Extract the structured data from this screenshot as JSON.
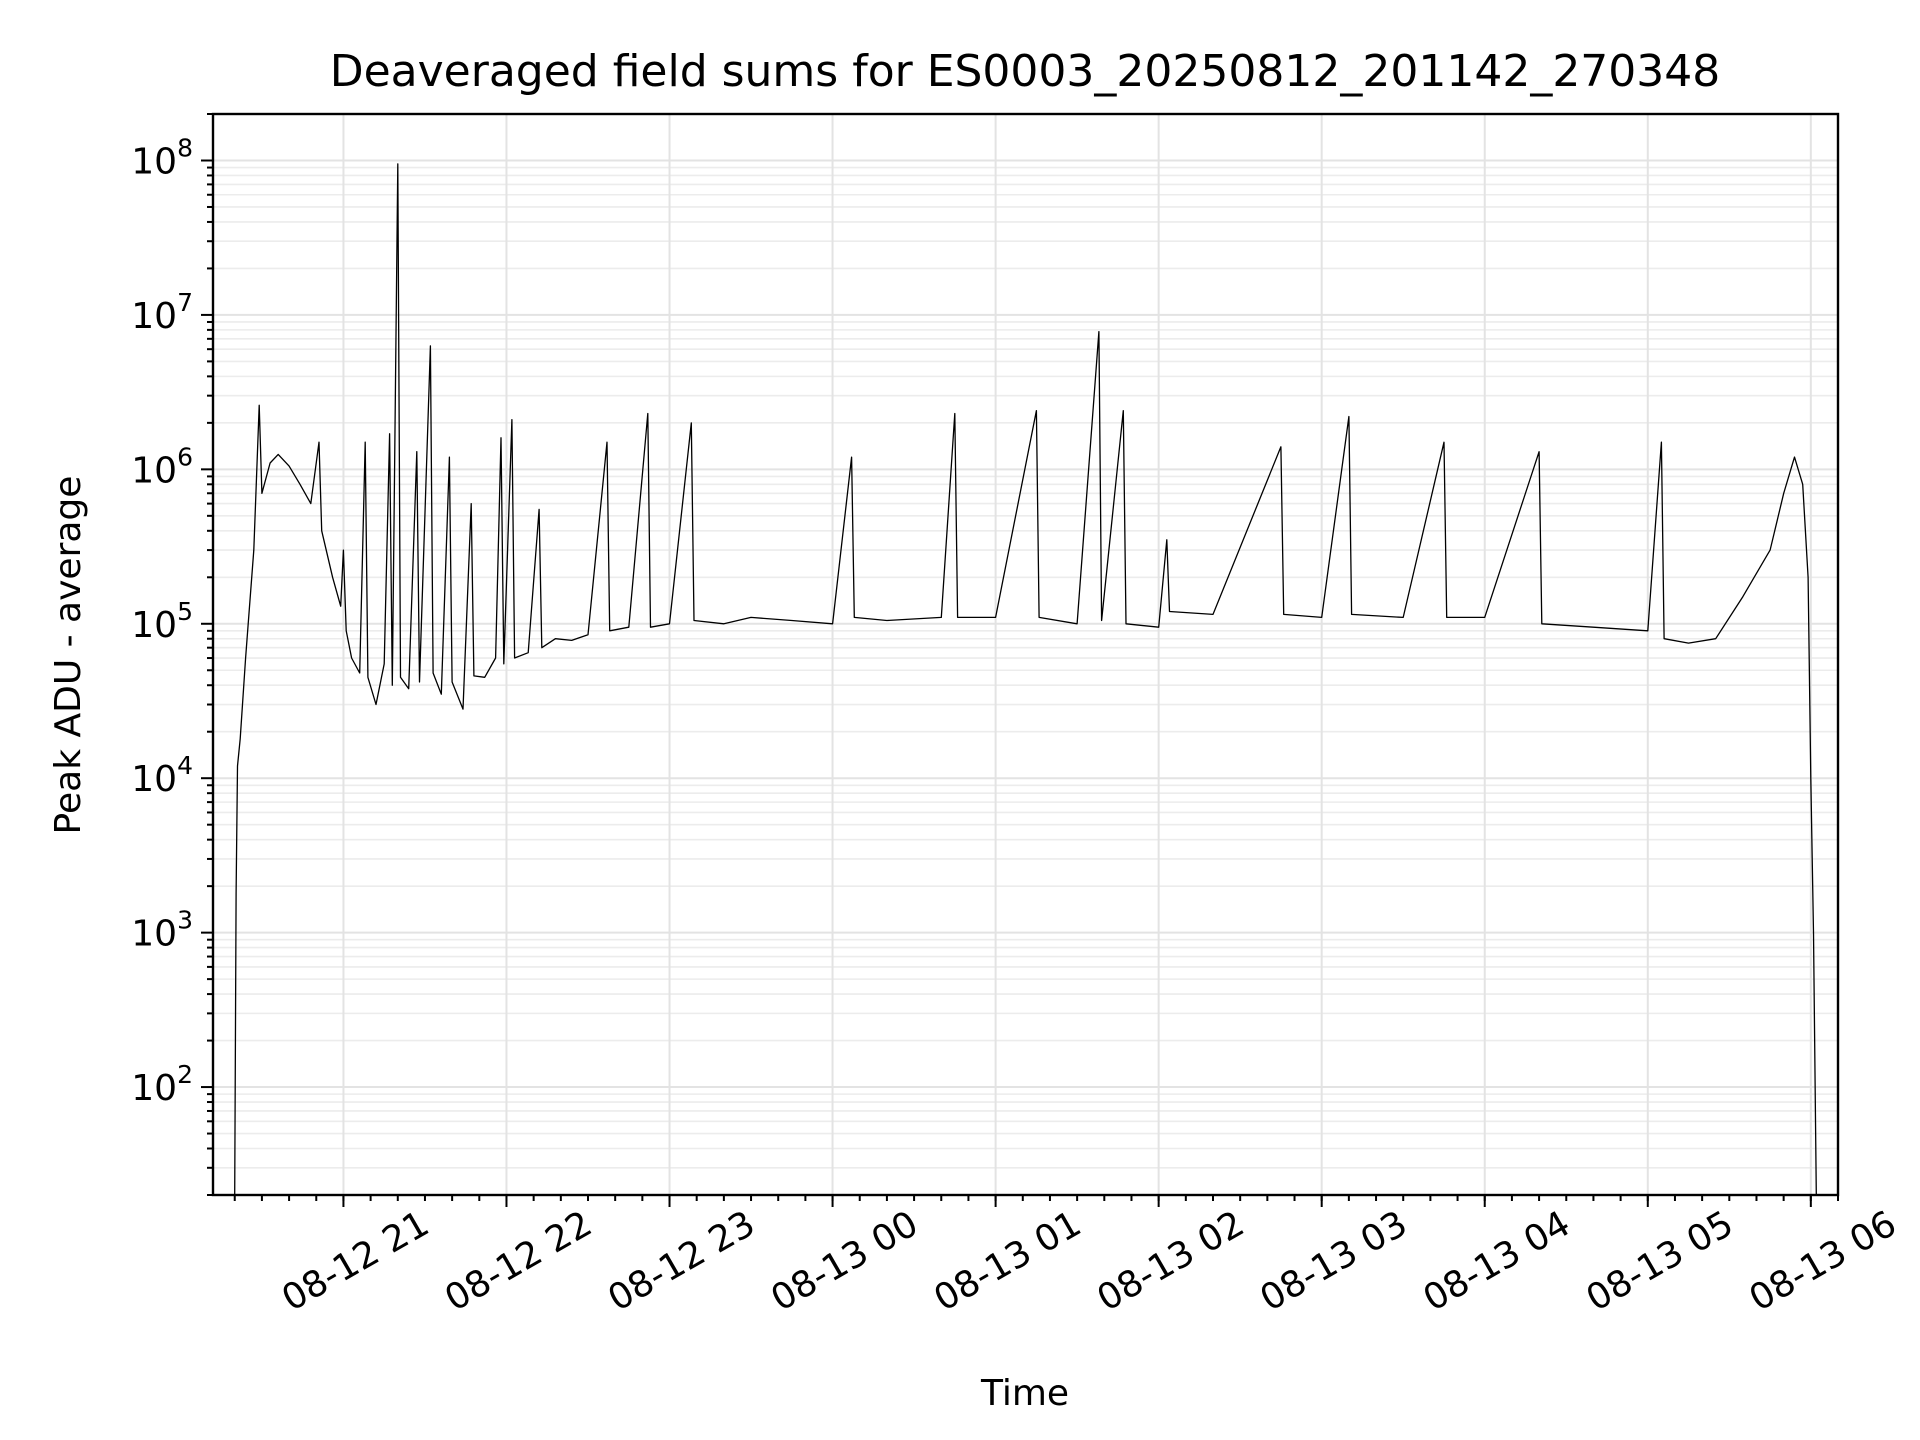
{
  "chart_data": {
    "type": "line",
    "title": "Deaveraged field sums for ES0003_20250812_201142_270348",
    "xlabel": "Time",
    "ylabel": "Peak ADU - average",
    "yscale": "log",
    "ylim": [
      20,
      200000000
    ],
    "xlim": [
      "2025-08-12T20:12:00",
      "2025-08-13T06:10:00"
    ],
    "grid": true,
    "x_ticks": [
      {
        "value": "2025-08-12T21:00:00",
        "label": "08-12 21"
      },
      {
        "value": "2025-08-12T22:00:00",
        "label": "08-12 22"
      },
      {
        "value": "2025-08-12T23:00:00",
        "label": "08-12 23"
      },
      {
        "value": "2025-08-13T00:00:00",
        "label": "08-13 00"
      },
      {
        "value": "2025-08-13T01:00:00",
        "label": "08-13 01"
      },
      {
        "value": "2025-08-13T02:00:00",
        "label": "08-13 02"
      },
      {
        "value": "2025-08-13T03:00:00",
        "label": "08-13 03"
      },
      {
        "value": "2025-08-13T04:00:00",
        "label": "08-13 04"
      },
      {
        "value": "2025-08-13T05:00:00",
        "label": "08-13 05"
      },
      {
        "value": "2025-08-13T06:00:00",
        "label": "08-13 06"
      }
    ],
    "y_ticks": [
      {
        "value": 100,
        "base": "10",
        "exp": "2"
      },
      {
        "value": 1000,
        "base": "10",
        "exp": "3"
      },
      {
        "value": 10000,
        "base": "10",
        "exp": "4"
      },
      {
        "value": 100000,
        "base": "10",
        "exp": "5"
      },
      {
        "value": 1000000,
        "base": "10",
        "exp": "6"
      },
      {
        "value": 10000000,
        "base": "10",
        "exp": "7"
      },
      {
        "value": 100000000,
        "base": "10",
        "exp": "8"
      }
    ],
    "series": [
      {
        "color": "#000000",
        "points": [
          [
            "2025-08-12T20:20:00",
            20
          ],
          [
            "2025-08-12T20:20:30",
            1800
          ],
          [
            "2025-08-12T20:21:00",
            12000
          ],
          [
            "2025-08-12T20:22:00",
            18000
          ],
          [
            "2025-08-12T20:24:00",
            60000
          ],
          [
            "2025-08-12T20:27:00",
            300000
          ],
          [
            "2025-08-12T20:29:00",
            2600000
          ],
          [
            "2025-08-12T20:30:00",
            700000
          ],
          [
            "2025-08-12T20:33:00",
            1100000
          ],
          [
            "2025-08-12T20:36:00",
            1250000
          ],
          [
            "2025-08-12T20:40:00",
            1050000
          ],
          [
            "2025-08-12T20:44:00",
            800000
          ],
          [
            "2025-08-12T20:48:00",
            600000
          ],
          [
            "2025-08-12T20:51:00",
            1500000
          ],
          [
            "2025-08-12T20:52:00",
            400000
          ],
          [
            "2025-08-12T20:56:00",
            200000
          ],
          [
            "2025-08-12T20:59:00",
            130000
          ],
          [
            "2025-08-12T21:00:00",
            300000
          ],
          [
            "2025-08-12T21:01:00",
            90000
          ],
          [
            "2025-08-12T21:03:00",
            60000
          ],
          [
            "2025-08-12T21:06:00",
            48000
          ],
          [
            "2025-08-12T21:08:00",
            1500000
          ],
          [
            "2025-08-12T21:09:00",
            45000
          ],
          [
            "2025-08-12T21:12:00",
            30000
          ],
          [
            "2025-08-12T21:15:00",
            55000
          ],
          [
            "2025-08-12T21:17:00",
            1700000
          ],
          [
            "2025-08-12T21:18:00",
            40000
          ],
          [
            "2025-08-12T21:20:00",
            95000000
          ],
          [
            "2025-08-12T21:21:00",
            45000
          ],
          [
            "2025-08-12T21:24:00",
            38000
          ],
          [
            "2025-08-12T21:27:00",
            1300000
          ],
          [
            "2025-08-12T21:28:00",
            42000
          ],
          [
            "2025-08-12T21:32:00",
            6300000
          ],
          [
            "2025-08-12T21:33:00",
            48000
          ],
          [
            "2025-08-12T21:36:00",
            35000
          ],
          [
            "2025-08-12T21:39:00",
            1200000
          ],
          [
            "2025-08-12T21:40:00",
            42000
          ],
          [
            "2025-08-12T21:44:00",
            28000
          ],
          [
            "2025-08-12T21:47:00",
            600000
          ],
          [
            "2025-08-12T21:48:00",
            46000
          ],
          [
            "2025-08-12T21:52:00",
            45000
          ],
          [
            "2025-08-12T21:56:00",
            60000
          ],
          [
            "2025-08-12T21:58:00",
            1600000
          ],
          [
            "2025-08-12T21:59:00",
            55000
          ],
          [
            "2025-08-12T22:02:00",
            2100000
          ],
          [
            "2025-08-12T22:03:00",
            60000
          ],
          [
            "2025-08-12T22:08:00",
            65000
          ],
          [
            "2025-08-12T22:12:00",
            550000
          ],
          [
            "2025-08-12T22:13:00",
            70000
          ],
          [
            "2025-08-12T22:18:00",
            80000
          ],
          [
            "2025-08-12T22:24:00",
            78000
          ],
          [
            "2025-08-12T22:30:00",
            85000
          ],
          [
            "2025-08-12T22:37:00",
            1500000
          ],
          [
            "2025-08-12T22:38:00",
            90000
          ],
          [
            "2025-08-12T22:45:00",
            95000
          ],
          [
            "2025-08-12T22:52:00",
            2300000
          ],
          [
            "2025-08-12T22:53:00",
            95000
          ],
          [
            "2025-08-12T23:00:00",
            100000
          ],
          [
            "2025-08-12T23:08:00",
            2000000
          ],
          [
            "2025-08-12T23:09:00",
            105000
          ],
          [
            "2025-08-12T23:20:00",
            100000
          ],
          [
            "2025-08-12T23:30:00",
            110000
          ],
          [
            "2025-08-12T23:45:00",
            105000
          ],
          [
            "2025-08-13T00:00:00",
            100000
          ],
          [
            "2025-08-13T00:07:00",
            1200000
          ],
          [
            "2025-08-13T00:08:00",
            110000
          ],
          [
            "2025-08-13T00:20:00",
            105000
          ],
          [
            "2025-08-13T00:40:00",
            110000
          ],
          [
            "2025-08-13T00:45:00",
            2300000
          ],
          [
            "2025-08-13T00:46:00",
            110000
          ],
          [
            "2025-08-13T01:00:00",
            110000
          ],
          [
            "2025-08-13T01:15:00",
            2400000
          ],
          [
            "2025-08-13T01:16:00",
            110000
          ],
          [
            "2025-08-13T01:30:00",
            100000
          ],
          [
            "2025-08-13T01:38:00",
            7800000
          ],
          [
            "2025-08-13T01:39:00",
            105000
          ],
          [
            "2025-08-13T01:47:00",
            2400000
          ],
          [
            "2025-08-13T01:48:00",
            100000
          ],
          [
            "2025-08-13T02:00:00",
            95000
          ],
          [
            "2025-08-13T02:03:00",
            350000
          ],
          [
            "2025-08-13T02:04:00",
            120000
          ],
          [
            "2025-08-13T02:20:00",
            115000
          ],
          [
            "2025-08-13T02:45:00",
            1400000
          ],
          [
            "2025-08-13T02:46:00",
            115000
          ],
          [
            "2025-08-13T03:00:00",
            110000
          ],
          [
            "2025-08-13T03:10:00",
            2200000
          ],
          [
            "2025-08-13T03:11:00",
            115000
          ],
          [
            "2025-08-13T03:30:00",
            110000
          ],
          [
            "2025-08-13T03:45:00",
            1500000
          ],
          [
            "2025-08-13T03:46:00",
            110000
          ],
          [
            "2025-08-13T04:00:00",
            110000
          ],
          [
            "2025-08-13T04:20:00",
            1300000
          ],
          [
            "2025-08-13T04:21:00",
            100000
          ],
          [
            "2025-08-13T04:40:00",
            95000
          ],
          [
            "2025-08-13T05:00:00",
            90000
          ],
          [
            "2025-08-13T05:05:00",
            1500000
          ],
          [
            "2025-08-13T05:06:00",
            80000
          ],
          [
            "2025-08-13T05:15:00",
            75000
          ],
          [
            "2025-08-13T05:25:00",
            80000
          ],
          [
            "2025-08-13T05:35:00",
            150000
          ],
          [
            "2025-08-13T05:45:00",
            300000
          ],
          [
            "2025-08-13T05:50:00",
            700000
          ],
          [
            "2025-08-13T05:54:00",
            1200000
          ],
          [
            "2025-08-13T05:57:00",
            800000
          ],
          [
            "2025-08-13T05:59:00",
            200000
          ],
          [
            "2025-08-13T06:00:00",
            10000
          ],
          [
            "2025-08-13T06:01:00",
            1000
          ],
          [
            "2025-08-13T06:02:00",
            20
          ]
        ]
      }
    ]
  }
}
